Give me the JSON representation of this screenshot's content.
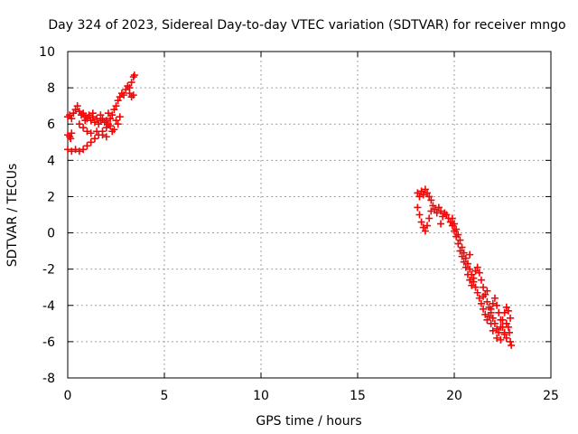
{
  "chart_data": {
    "type": "scatter",
    "title": "Day 324 of 2023, Sidereal Day-to-day VTEC variation (SDTVAR) for receiver mngo",
    "xlabel": "GPS time / hours",
    "ylabel": "SDTVAR / TECUs",
    "xlim": [
      0,
      25
    ],
    "ylim": [
      -8,
      10
    ],
    "xticks": [
      0,
      5,
      10,
      15,
      20,
      25
    ],
    "yticks": [
      -8,
      -6,
      -4,
      -2,
      0,
      2,
      4,
      6,
      8,
      10
    ],
    "grid": true,
    "marker": "+",
    "series": [
      {
        "color": "#ff0000",
        "points": [
          [
            0.0,
            6.4
          ],
          [
            0.1,
            6.5
          ],
          [
            0.2,
            6.3
          ],
          [
            0.3,
            6.6
          ],
          [
            0.4,
            6.8
          ],
          [
            0.5,
            7.0
          ],
          [
            0.6,
            6.7
          ],
          [
            0.7,
            6.5
          ],
          [
            0.8,
            6.6
          ],
          [
            0.9,
            6.4
          ],
          [
            1.0,
            6.3
          ],
          [
            1.1,
            6.5
          ],
          [
            1.2,
            6.2
          ],
          [
            1.3,
            6.4
          ],
          [
            1.4,
            6.1
          ],
          [
            1.5,
            6.3
          ],
          [
            1.6,
            6.0
          ],
          [
            1.7,
            6.2
          ],
          [
            1.8,
            6.3
          ],
          [
            1.9,
            6.1
          ],
          [
            2.0,
            6.2
          ],
          [
            2.1,
            6.0
          ],
          [
            2.2,
            6.3
          ],
          [
            2.3,
            6.5
          ],
          [
            2.4,
            6.8
          ],
          [
            2.5,
            7.0
          ],
          [
            2.6,
            7.3
          ],
          [
            2.7,
            7.5
          ],
          [
            2.8,
            7.7
          ],
          [
            2.9,
            7.6
          ],
          [
            3.0,
            7.9
          ],
          [
            3.1,
            8.1
          ],
          [
            3.2,
            8.0
          ],
          [
            3.3,
            8.3
          ],
          [
            3.4,
            8.6
          ],
          [
            3.45,
            8.7
          ],
          [
            3.3,
            7.5
          ],
          [
            3.2,
            7.7
          ],
          [
            3.4,
            7.6
          ],
          [
            0.0,
            5.4
          ],
          [
            0.1,
            5.3
          ],
          [
            0.2,
            5.5
          ],
          [
            0.15,
            5.2
          ],
          [
            0.0,
            4.6
          ],
          [
            0.2,
            4.5
          ],
          [
            0.4,
            4.6
          ],
          [
            0.6,
            4.5
          ],
          [
            0.8,
            4.6
          ],
          [
            1.0,
            4.8
          ],
          [
            1.2,
            5.0
          ],
          [
            1.4,
            5.2
          ],
          [
            1.6,
            5.4
          ],
          [
            1.8,
            5.6
          ],
          [
            2.0,
            5.8
          ],
          [
            2.2,
            5.9
          ],
          [
            2.4,
            5.7
          ],
          [
            0.6,
            6.0
          ],
          [
            0.8,
            5.8
          ],
          [
            1.0,
            5.6
          ],
          [
            1.2,
            5.5
          ],
          [
            1.5,
            5.6
          ],
          [
            1.8,
            5.4
          ],
          [
            2.0,
            5.3
          ],
          [
            2.3,
            5.6
          ],
          [
            2.5,
            6.2
          ],
          [
            2.6,
            6.0
          ],
          [
            2.7,
            6.4
          ],
          [
            1.7,
            6.5
          ],
          [
            1.3,
            6.6
          ],
          [
            0.9,
            6.2
          ],
          [
            2.1,
            6.6
          ],
          [
            18.1,
            2.2
          ],
          [
            18.2,
            2.0
          ],
          [
            18.3,
            2.3
          ],
          [
            18.4,
            2.1
          ],
          [
            18.5,
            2.4
          ],
          [
            18.6,
            2.2
          ],
          [
            18.7,
            2.0
          ],
          [
            18.8,
            1.8
          ],
          [
            18.1,
            1.4
          ],
          [
            18.2,
            1.0
          ],
          [
            18.3,
            0.6
          ],
          [
            18.4,
            0.3
          ],
          [
            18.5,
            0.1
          ],
          [
            18.6,
            0.4
          ],
          [
            18.7,
            0.8
          ],
          [
            18.8,
            1.2
          ],
          [
            18.9,
            1.5
          ],
          [
            19.0,
            1.3
          ],
          [
            19.1,
            1.1
          ],
          [
            19.2,
            1.4
          ],
          [
            19.3,
            1.2
          ],
          [
            19.4,
            0.9
          ],
          [
            19.5,
            1.1
          ],
          [
            19.6,
            1.0
          ],
          [
            19.7,
            0.8
          ],
          [
            19.8,
            0.6
          ],
          [
            19.9,
            0.4
          ],
          [
            20.0,
            0.1
          ],
          [
            20.1,
            -0.2
          ],
          [
            20.2,
            -0.6
          ],
          [
            20.3,
            -1.0
          ],
          [
            20.4,
            -1.3
          ],
          [
            20.5,
            -1.6
          ],
          [
            20.6,
            -1.9
          ],
          [
            20.7,
            -2.3
          ],
          [
            20.8,
            -2.6
          ],
          [
            20.9,
            -2.9
          ],
          [
            21.0,
            -2.5
          ],
          [
            21.1,
            -2.1
          ],
          [
            21.2,
            -1.9
          ],
          [
            21.3,
            -2.2
          ],
          [
            21.4,
            -2.6
          ],
          [
            21.5,
            -3.0
          ],
          [
            21.6,
            -3.4
          ],
          [
            21.7,
            -3.8
          ],
          [
            21.8,
            -4.1
          ],
          [
            21.9,
            -4.4
          ],
          [
            22.0,
            -4.7
          ],
          [
            22.1,
            -5.0
          ],
          [
            22.2,
            -5.3
          ],
          [
            22.3,
            -5.5
          ],
          [
            22.4,
            -5.2
          ],
          [
            22.5,
            -4.8
          ],
          [
            22.6,
            -4.4
          ],
          [
            22.7,
            -4.1
          ],
          [
            22.8,
            -4.3
          ],
          [
            22.9,
            -4.7
          ],
          [
            22.85,
            -5.5
          ],
          [
            22.9,
            -6.0
          ],
          [
            22.95,
            -6.2
          ],
          [
            19.9,
            0.8
          ],
          [
            20.0,
            0.5
          ],
          [
            20.1,
            0.2
          ],
          [
            20.2,
            -0.1
          ],
          [
            20.3,
            -0.4
          ],
          [
            20.4,
            -0.8
          ],
          [
            20.5,
            -1.1
          ],
          [
            20.6,
            -1.4
          ],
          [
            20.7,
            -1.7
          ],
          [
            20.8,
            -2.0
          ],
          [
            20.9,
            -2.3
          ],
          [
            21.0,
            -2.7
          ],
          [
            21.1,
            -3.0
          ],
          [
            21.2,
            -3.3
          ],
          [
            21.3,
            -3.6
          ],
          [
            21.4,
            -3.9
          ],
          [
            21.5,
            -4.2
          ],
          [
            21.6,
            -4.5
          ],
          [
            21.7,
            -4.8
          ],
          [
            21.8,
            -4.6
          ],
          [
            21.9,
            -4.2
          ],
          [
            22.0,
            -3.9
          ],
          [
            22.1,
            -3.6
          ],
          [
            22.2,
            -4.0
          ],
          [
            22.3,
            -4.4
          ],
          [
            22.4,
            -4.8
          ],
          [
            22.5,
            -5.2
          ],
          [
            22.6,
            -5.5
          ],
          [
            22.7,
            -5.8
          ],
          [
            21.9,
            -5.0
          ],
          [
            22.0,
            -5.4
          ],
          [
            22.2,
            -5.8
          ],
          [
            22.4,
            -5.9
          ],
          [
            22.6,
            -5.6
          ],
          [
            22.8,
            -5.2
          ],
          [
            22.7,
            -5.0
          ],
          [
            21.5,
            -3.5
          ],
          [
            21.7,
            -3.2
          ],
          [
            20.8,
            -1.2
          ],
          [
            19.3,
            0.5
          ]
        ]
      }
    ]
  }
}
